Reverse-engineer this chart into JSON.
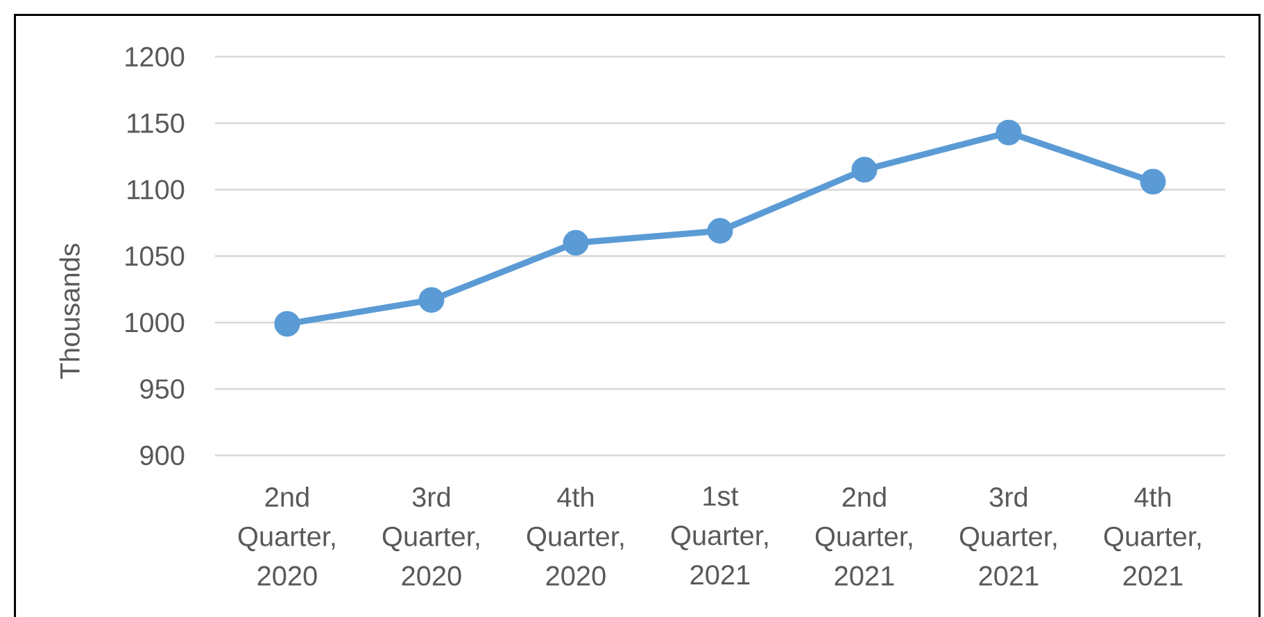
{
  "chart_data": {
    "type": "line",
    "ylabel": "Thousands",
    "categories": [
      "2nd Quarter, 2020",
      "3rd Quarter, 2020",
      "4th Quarter, 2020",
      "1st Quarter, 2021",
      "2nd Quarter, 2021",
      "3rd Quarter, 2021",
      "4th Quarter, 2021"
    ],
    "series": [
      {
        "color": "#5b9bd5",
        "values": [
          999,
          1017,
          1060,
          1069,
          1115,
          1143,
          1106
        ]
      }
    ],
    "ylim": [
      900,
      1200
    ],
    "yticks": [
      900,
      950,
      1000,
      1050,
      1100,
      1150,
      1200
    ],
    "grid": "y",
    "marker": "circle",
    "line_style": "solid"
  }
}
